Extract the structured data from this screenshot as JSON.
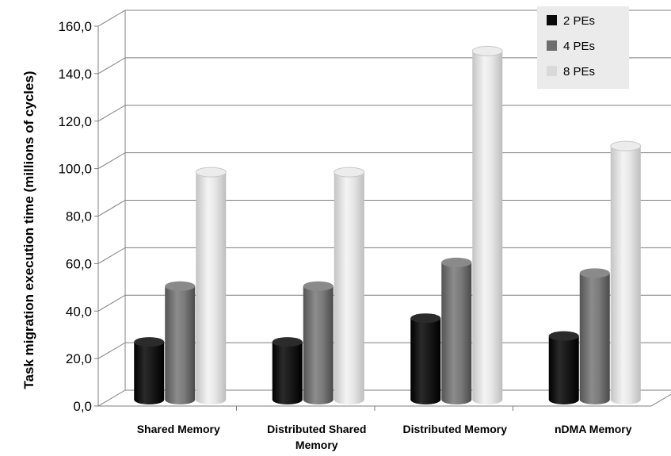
{
  "chart_data": {
    "type": "bar",
    "style": "3d-cylinder",
    "title": "",
    "xlabel": "",
    "ylabel": "Task migration execution time (millions of cycles)",
    "categories": [
      [
        "Shared Memory"
      ],
      [
        "Distributed Shared",
        "Memory"
      ],
      [
        "Distributed Memory"
      ],
      [
        "nDMA Memory"
      ]
    ],
    "series": [
      {
        "name": "2 PEs",
        "values": [
          24.0,
          24.0,
          34.0,
          26.5
        ],
        "color": "#0a0a0a"
      },
      {
        "name": "4 PEs",
        "values": [
          47.5,
          47.5,
          57.5,
          53.0
        ],
        "color": "#6e6e6e"
      },
      {
        "name": "8 PEs",
        "values": [
          95.5,
          95.5,
          146.5,
          106.5
        ],
        "color": "#d9d9d9"
      }
    ],
    "ylim": [
      0,
      160
    ],
    "yticks": [
      "0,0",
      "20,0",
      "40,0",
      "60,0",
      "80,0",
      "100,0",
      "120,0",
      "140,0",
      "160,0"
    ],
    "grid": true,
    "legend": "top-right"
  }
}
